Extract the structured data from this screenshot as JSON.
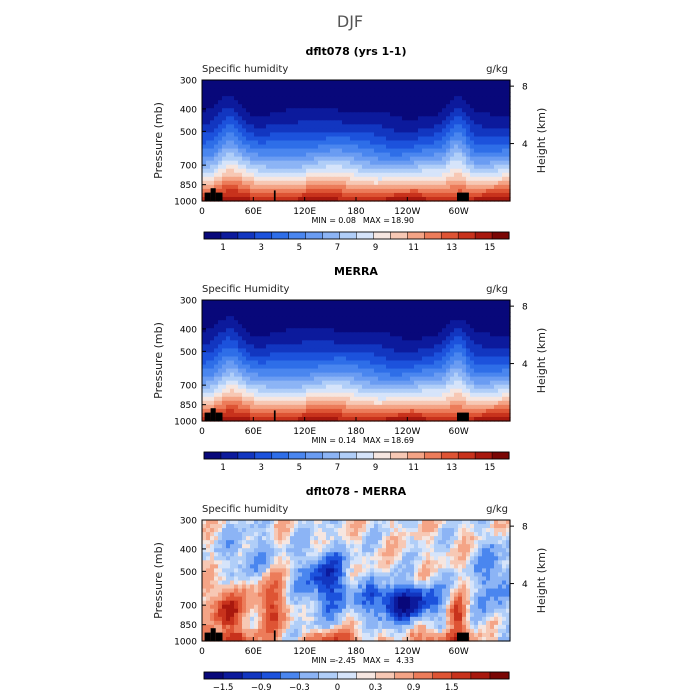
{
  "figure_title": "DJF",
  "colors": {
    "absolute_scale": [
      "#08087a",
      "#0c1a9c",
      "#1236c0",
      "#1c52dc",
      "#2e6ee8",
      "#4a86ef",
      "#6a9cf2",
      "#8cb4f5",
      "#b0cef8",
      "#d6e4fa",
      "#f6e6e0",
      "#f7c8b4",
      "#f4a486",
      "#ec7c5a",
      "#de5434",
      "#c8321c",
      "#a8180e",
      "#7a0604"
    ],
    "difference_scale": [
      "#08087a",
      "#0c1a9c",
      "#1236c0",
      "#1c52dc",
      "#4a86ef",
      "#8cb4f5",
      "#b0cef8",
      "#d6e4fa",
      "#f6e6e0",
      "#f7c8b4",
      "#f4a486",
      "#ec7c5a",
      "#de5434",
      "#c8321c",
      "#a8180e",
      "#7a0604"
    ],
    "land": "#000000"
  },
  "chart_data": [
    {
      "type": "heatmap",
      "title": "dflt078 (yrs 1-1)",
      "left_label": "Specific humidity",
      "right_label": "g/kg",
      "ylabel": "Pressure (mb)",
      "ylabel_right": "Height (km)",
      "x_ticks": [
        "0",
        "60E",
        "120E",
        "180",
        "120W",
        "60W"
      ],
      "x_tick_values": [
        0,
        60,
        120,
        180,
        240,
        300
      ],
      "xlim": [
        0,
        360
      ],
      "y_ticks": [
        "300",
        "400",
        "500",
        "700",
        "850",
        "1000"
      ],
      "y_tick_values": [
        300,
        400,
        500,
        700,
        850,
        1000
      ],
      "ylim": [
        300,
        1000
      ],
      "y_right_ticks": [
        "8",
        "4"
      ],
      "y_right_tick_values": [
        8,
        4
      ],
      "stats": {
        "min_label": "MIN =",
        "min": "0.08",
        "max_label": "MAX =",
        "max": "18.90"
      },
      "colorbar_labels": [
        "1",
        "3",
        "5",
        "7",
        "9",
        "11",
        "13",
        "15"
      ],
      "colorbar_label_values": [
        1,
        3,
        5,
        7,
        9,
        11,
        13,
        15
      ],
      "colorbar_range": [
        0,
        16
      ]
    },
    {
      "type": "heatmap",
      "title": "MERRA",
      "left_label": "Specific Humidity",
      "right_label": "g/kg",
      "ylabel": "Pressure (mb)",
      "ylabel_right": "Height (km)",
      "x_ticks": [
        "0",
        "60E",
        "120E",
        "180",
        "120W",
        "60W"
      ],
      "x_tick_values": [
        0,
        60,
        120,
        180,
        240,
        300
      ],
      "xlim": [
        0,
        360
      ],
      "y_ticks": [
        "300",
        "400",
        "500",
        "700",
        "850",
        "1000"
      ],
      "y_tick_values": [
        300,
        400,
        500,
        700,
        850,
        1000
      ],
      "ylim": [
        300,
        1000
      ],
      "y_right_ticks": [
        "8",
        "4"
      ],
      "y_right_tick_values": [
        8,
        4
      ],
      "stats": {
        "min_label": "MIN =",
        "min": "0.14",
        "max_label": "MAX =",
        "max": "18.69"
      },
      "colorbar_labels": [
        "1",
        "3",
        "5",
        "7",
        "9",
        "11",
        "13",
        "15"
      ],
      "colorbar_label_values": [
        1,
        3,
        5,
        7,
        9,
        11,
        13,
        15
      ],
      "colorbar_range": [
        0,
        16
      ]
    },
    {
      "type": "heatmap",
      "title": "dflt078 - MERRA",
      "left_label": "Specific humidity",
      "right_label": "g/kg",
      "ylabel": "Pressure (mb)",
      "ylabel_right": "Height (km)",
      "x_ticks": [
        "0",
        "60E",
        "120E",
        "180",
        "120W",
        "60W"
      ],
      "x_tick_values": [
        0,
        60,
        120,
        180,
        240,
        300
      ],
      "xlim": [
        0,
        360
      ],
      "y_ticks": [
        "300",
        "400",
        "500",
        "700",
        "850",
        "1000"
      ],
      "y_tick_values": [
        300,
        400,
        500,
        700,
        850,
        1000
      ],
      "ylim": [
        300,
        1000
      ],
      "y_right_ticks": [
        "8",
        "4"
      ],
      "y_right_tick_values": [
        8,
        4
      ],
      "stats": {
        "min_label": "MIN =",
        "min": "-2.45",
        "max_label": "MAX =",
        "max": "4.33"
      },
      "colorbar_labels": [
        "−1.5",
        "−0.9",
        "−0.3",
        "0",
        "0.3",
        "0.9",
        "1.5"
      ],
      "colorbar_label_values": [
        1,
        3,
        5,
        7,
        9,
        11,
        13
      ],
      "colorbar_range": [
        0,
        16
      ]
    }
  ]
}
